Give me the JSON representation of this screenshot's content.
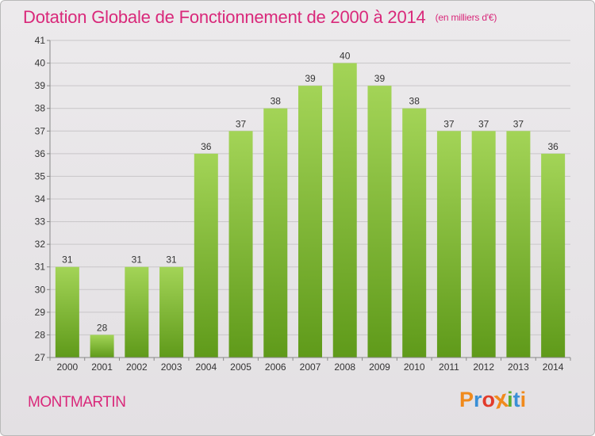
{
  "header": {
    "title": "Dotation Globale de Fonctionnement de 2000 à 2014",
    "subtitle": "(en milliers d'€)"
  },
  "footer": {
    "commune": "MONTMARTIN",
    "logo_text": "Proxiti",
    "logo_colors": [
      "#f08a1c",
      "#3a8fd6",
      "#e23b2b",
      "#f08a1c",
      "#58b030",
      "#3a8fd6",
      "#f08a1c"
    ]
  },
  "colors": {
    "title": "#d9287a",
    "bar_top": "#a3d457",
    "bar_bottom": "#5f9a1a",
    "grid": "#c8c6c8",
    "axis": "#888888",
    "label": "#333333"
  },
  "chart_data": {
    "type": "bar",
    "title": "Dotation Globale de Fonctionnement de 2000 à 2014",
    "subtitle": "(en milliers d'€)",
    "categories": [
      "2000",
      "2001",
      "2002",
      "2003",
      "2004",
      "2005",
      "2006",
      "2007",
      "2008",
      "2009",
      "2010",
      "2011",
      "2012",
      "2013",
      "2014"
    ],
    "values": [
      31,
      28,
      31,
      31,
      36,
      37,
      38,
      39,
      40,
      39,
      38,
      37,
      37,
      37,
      36
    ],
    "ylim": [
      27,
      41
    ],
    "yticks": [
      27,
      28,
      29,
      30,
      31,
      32,
      33,
      34,
      35,
      36,
      37,
      38,
      39,
      40,
      41
    ],
    "grid": true,
    "data_labels": true
  }
}
